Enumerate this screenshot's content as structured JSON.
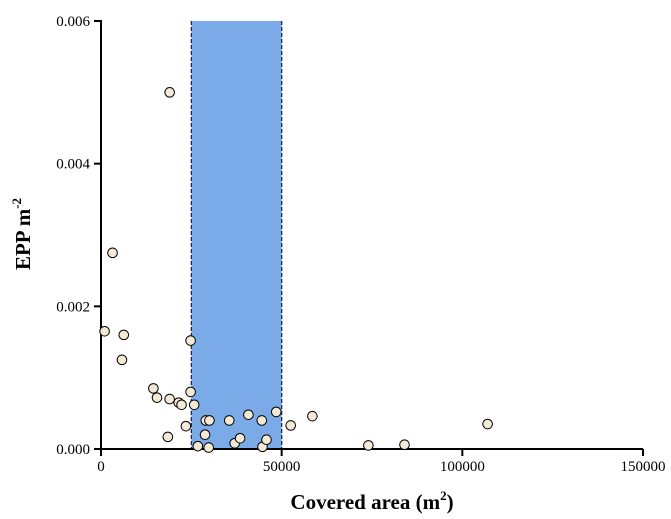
{
  "chart_data": {
    "type": "scatter",
    "xlabel": "Covered area (m",
    "xlabel_sup": "2",
    "xlabel_suffix": ")",
    "ylabel": "EPP m",
    "ylabel_sup": "-2",
    "xlim": [
      0,
      150000
    ],
    "ylim": [
      0,
      0.006
    ],
    "x_ticks": [
      0,
      50000,
      100000,
      150000
    ],
    "x_tick_labels": [
      "0",
      "50000",
      "100000",
      "150000"
    ],
    "y_ticks": [
      0,
      0.002,
      0.004,
      0.006
    ],
    "y_tick_labels": [
      "0.000",
      "0.002",
      "0.004",
      "0.006"
    ],
    "highlight_band": {
      "x_range": [
        25000,
        50000
      ],
      "color": "#7aaae8",
      "edge_style": "dashed"
    },
    "grid": false,
    "marker_fill": "#f3ead6",
    "marker_edge": "#000000",
    "points": [
      {
        "x": 1000,
        "y": 0.00165
      },
      {
        "x": 3200,
        "y": 0.00275
      },
      {
        "x": 6300,
        "y": 0.0016
      },
      {
        "x": 5800,
        "y": 0.00125
      },
      {
        "x": 14500,
        "y": 0.00085
      },
      {
        "x": 15500,
        "y": 0.00072
      },
      {
        "x": 19000,
        "y": 0.005
      },
      {
        "x": 19000,
        "y": 0.0007
      },
      {
        "x": 18500,
        "y": 0.00017
      },
      {
        "x": 21500,
        "y": 0.00065
      },
      {
        "x": 22300,
        "y": 0.00062
      },
      {
        "x": 23500,
        "y": 0.00032
      },
      {
        "x": 24800,
        "y": 0.00152
      },
      {
        "x": 24800,
        "y": 0.0008
      },
      {
        "x": 25800,
        "y": 0.00062
      },
      {
        "x": 26800,
        "y": 4e-05
      },
      {
        "x": 28800,
        "y": 0.0002
      },
      {
        "x": 29000,
        "y": 0.0004
      },
      {
        "x": 29800,
        "y": 2e-05
      },
      {
        "x": 30000,
        "y": 0.0004
      },
      {
        "x": 35500,
        "y": 0.0004
      },
      {
        "x": 37000,
        "y": 8e-05
      },
      {
        "x": 38500,
        "y": 0.00015
      },
      {
        "x": 40800,
        "y": 0.00048
      },
      {
        "x": 44500,
        "y": 0.0004
      },
      {
        "x": 44700,
        "y": 3e-05
      },
      {
        "x": 45800,
        "y": 0.00013
      },
      {
        "x": 48500,
        "y": 0.00052
      },
      {
        "x": 52500,
        "y": 0.00033
      },
      {
        "x": 58500,
        "y": 0.00046
      },
      {
        "x": 74000,
        "y": 5e-05
      },
      {
        "x": 84000,
        "y": 6e-05
      },
      {
        "x": 107000,
        "y": 0.00035
      }
    ]
  }
}
